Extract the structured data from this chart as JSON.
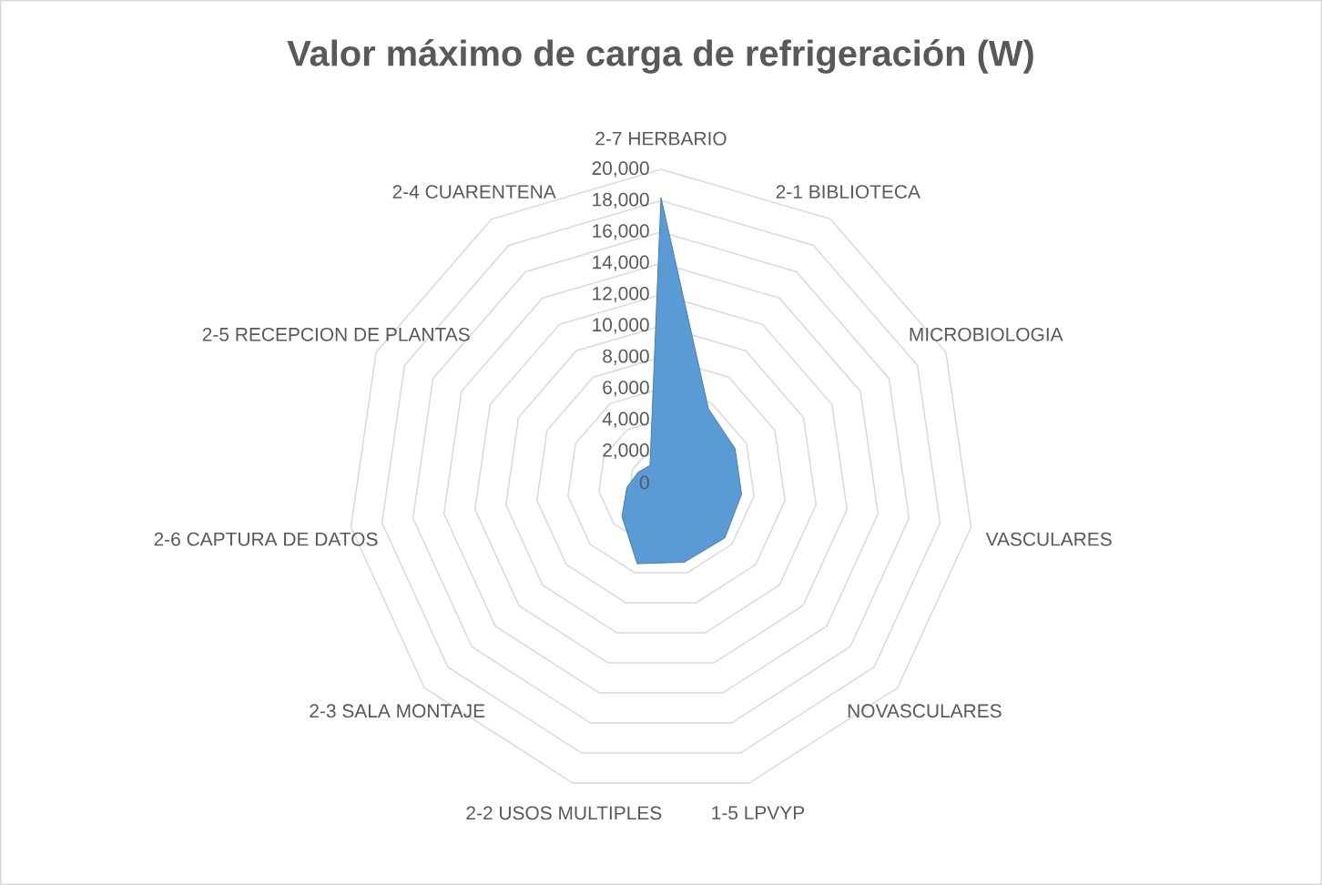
{
  "chart_data": {
    "type": "radar",
    "title": "Valor máximo de carga de refrigeración (W)",
    "categories": [
      "2-7 HERBARIO",
      "2-1 BIBLIOTECA",
      "MICROBIOLOGIA",
      "VASCULARES",
      "NOVASCULARES",
      "1-5 LPVYP",
      "2-2 USOS MULTIPLES",
      "2-3 SALA MONTAJE",
      "2-6 CAPTURA DE DATOS",
      "2-5 RECEPCION DE PLANTAS",
      "2-4 CUARENTENA"
    ],
    "series": [
      {
        "color": "#5b9bd5",
        "values": [
          18200,
          5600,
          5200,
          5200,
          5400,
          5300,
          5400,
          3300,
          2200,
          1600,
          1300
        ]
      }
    ],
    "ylim": [
      0,
      20000
    ],
    "yticks": [
      {
        "value": 0,
        "label": "0"
      },
      {
        "value": 2000,
        "label": "2,000"
      },
      {
        "value": 4000,
        "label": "4,000"
      },
      {
        "value": 6000,
        "label": "6,000"
      },
      {
        "value": 8000,
        "label": "8,000"
      },
      {
        "value": 10000,
        "label": "10,000"
      },
      {
        "value": 12000,
        "label": "12,000"
      },
      {
        "value": 14000,
        "label": "14,000"
      },
      {
        "value": 16000,
        "label": "16,000"
      },
      {
        "value": 18000,
        "label": "18,000"
      },
      {
        "value": 20000,
        "label": "20,000"
      }
    ],
    "grid": true
  }
}
